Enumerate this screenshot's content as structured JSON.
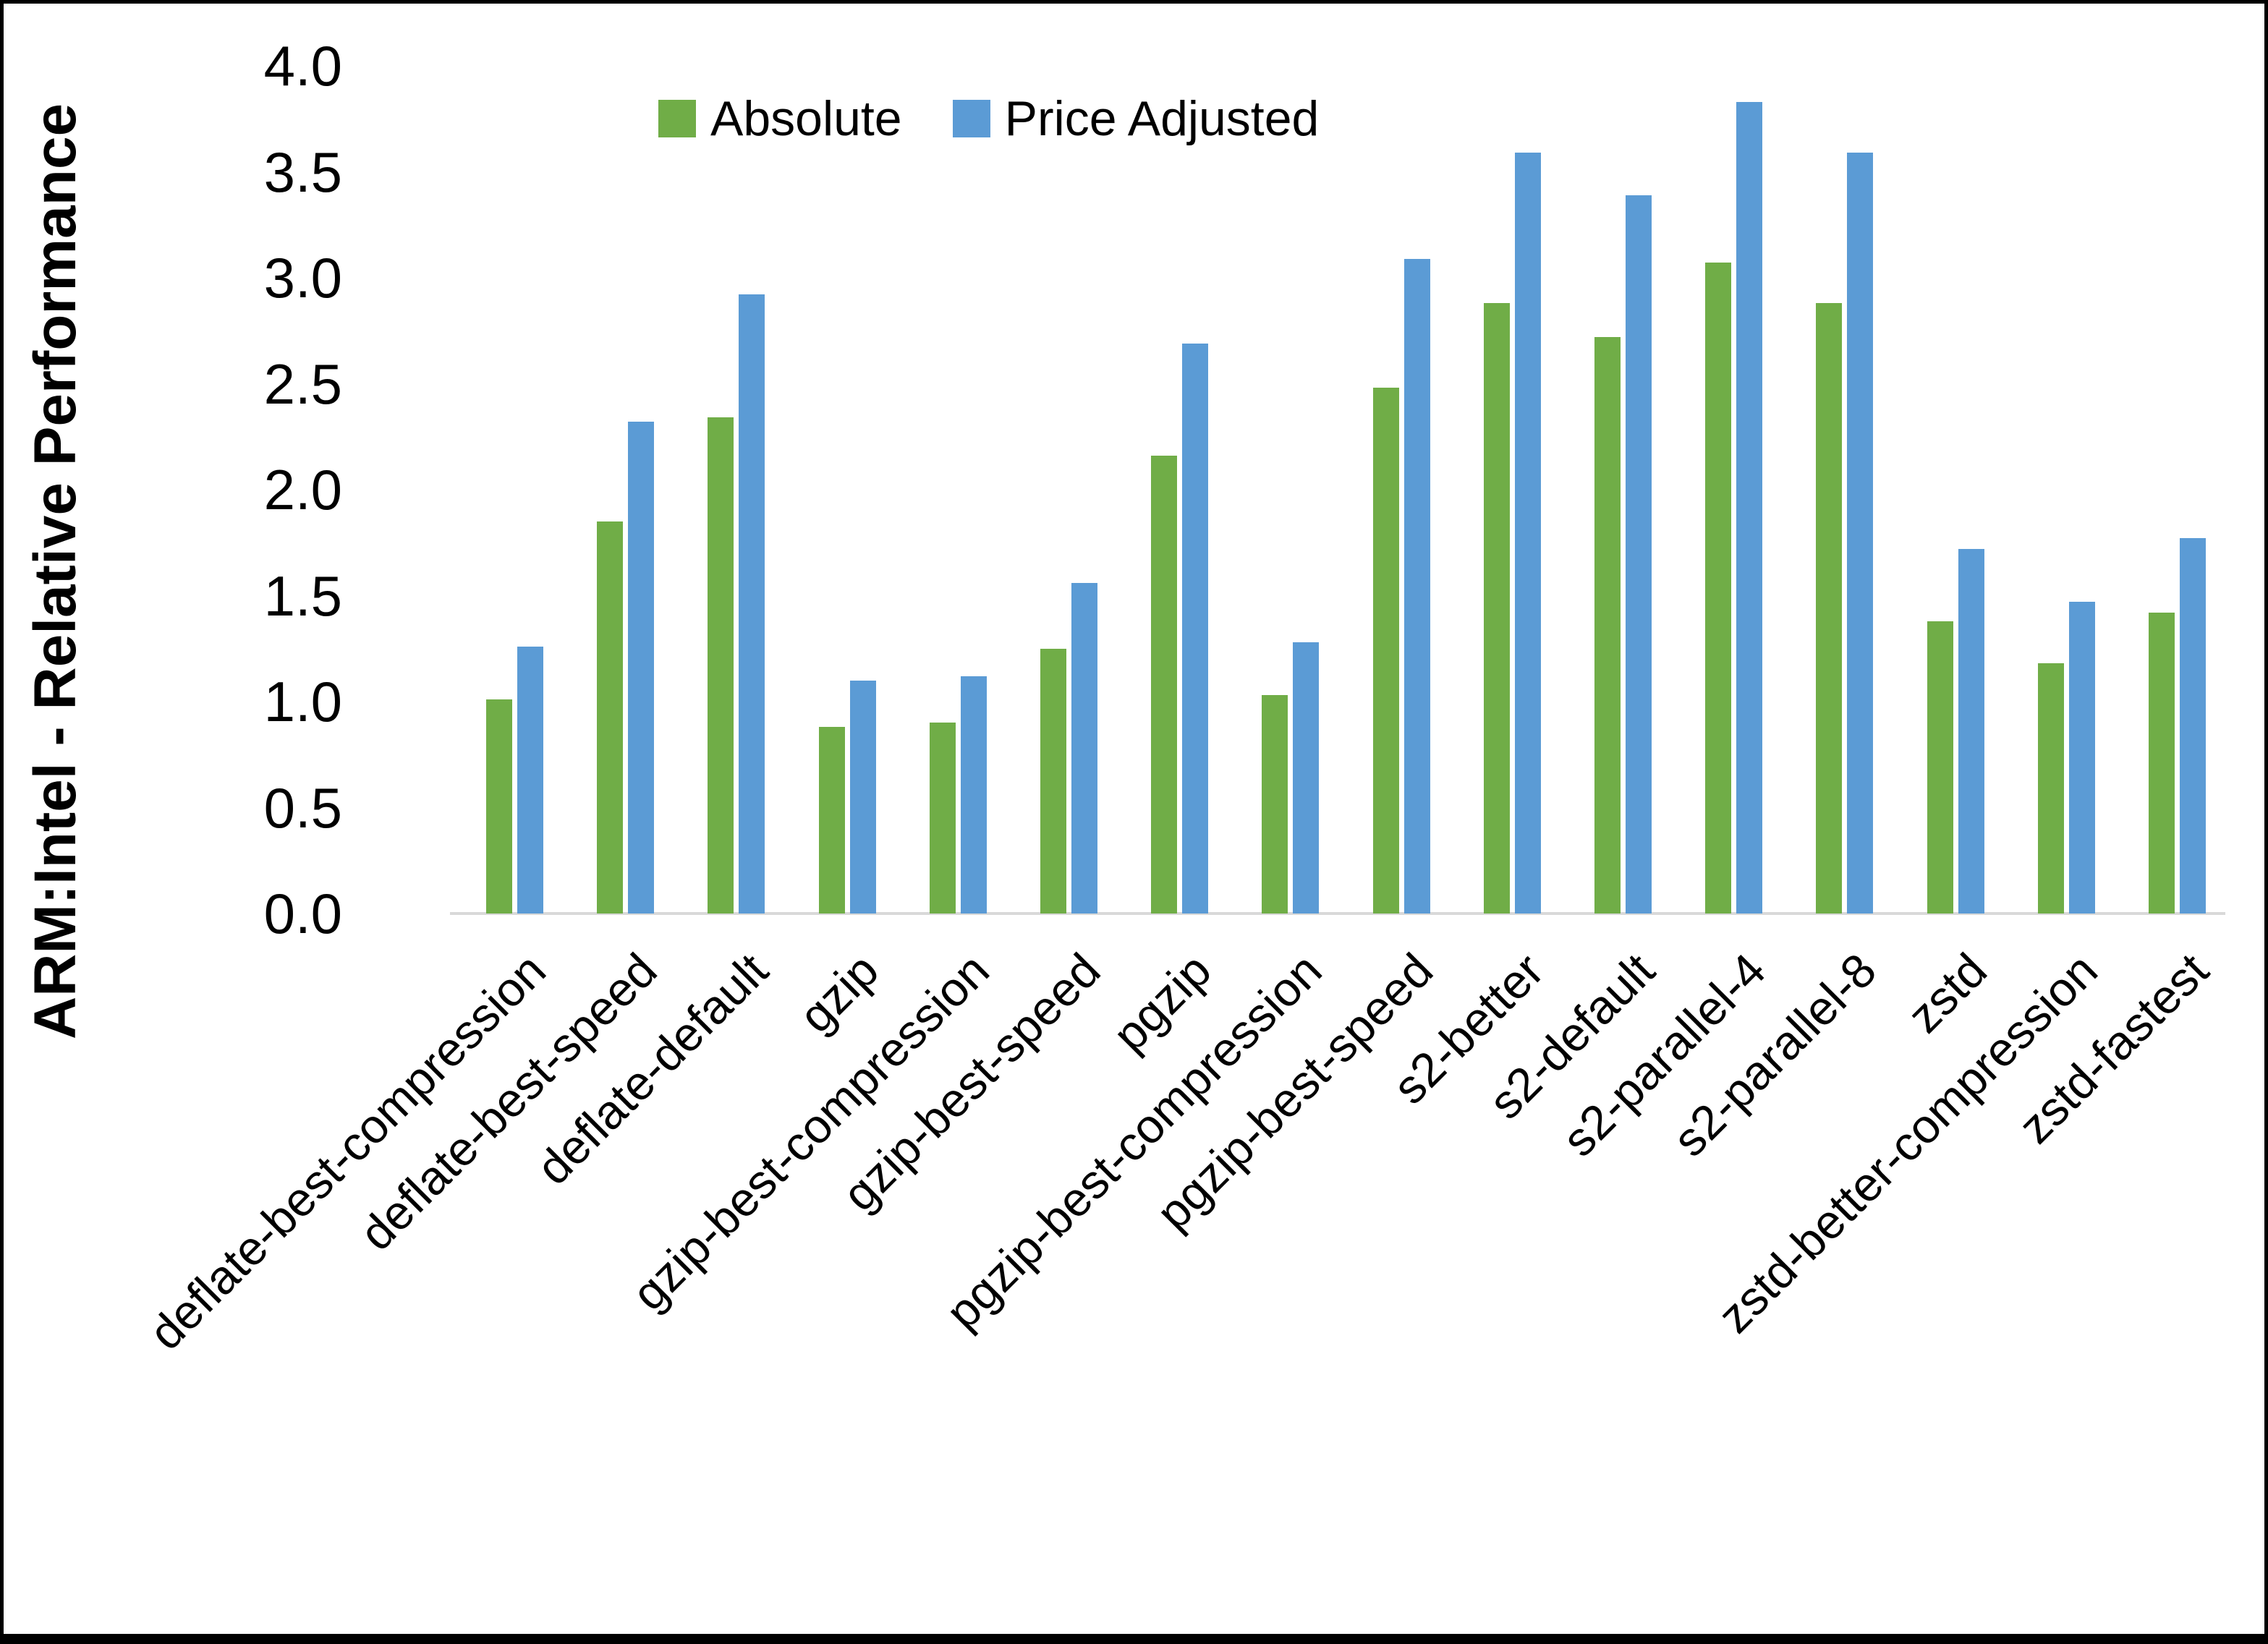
{
  "chart_data": {
    "type": "bar",
    "title": "",
    "xlabel": "",
    "ylabel": "ARM:Intel - Relative Performance",
    "ylim": [
      0.0,
      4.0
    ],
    "ytick_step": 0.5,
    "yticks": [
      "0.0",
      "0.5",
      "1.0",
      "1.5",
      "2.0",
      "2.5",
      "3.0",
      "3.5",
      "4.0"
    ],
    "grid": false,
    "legend_position": "top-center",
    "categories": [
      "deflate-best-compression",
      "deflate-best-speed",
      "deflate-default",
      "gzip",
      "gzip-best-compression",
      "gzip-best-speed",
      "pgzip",
      "pgzip-best-compression",
      "pgzip-best-speed",
      "s2-better",
      "s2-default",
      "s2-parallel-4",
      "s2-parallel-8",
      "zstd",
      "zstd-better-compression",
      "zstd-fastest"
    ],
    "series": [
      {
        "name": "Absolute",
        "color": "#70AD47",
        "values": [
          1.01,
          1.85,
          2.34,
          0.88,
          0.9,
          1.25,
          2.16,
          1.03,
          2.48,
          2.88,
          2.72,
          3.07,
          2.88,
          1.38,
          1.18,
          1.42
        ]
      },
      {
        "name": "Price Adjusted",
        "color": "#5B9BD5",
        "values": [
          1.26,
          2.32,
          2.92,
          1.1,
          1.12,
          1.56,
          2.69,
          1.28,
          3.09,
          3.59,
          3.39,
          3.83,
          3.59,
          1.72,
          1.47,
          1.77
        ]
      }
    ],
    "colors": {
      "axis_line": "#D9D9D9",
      "text": "#000000",
      "background": "#FFFFFF",
      "frame_border": "#000000"
    }
  }
}
